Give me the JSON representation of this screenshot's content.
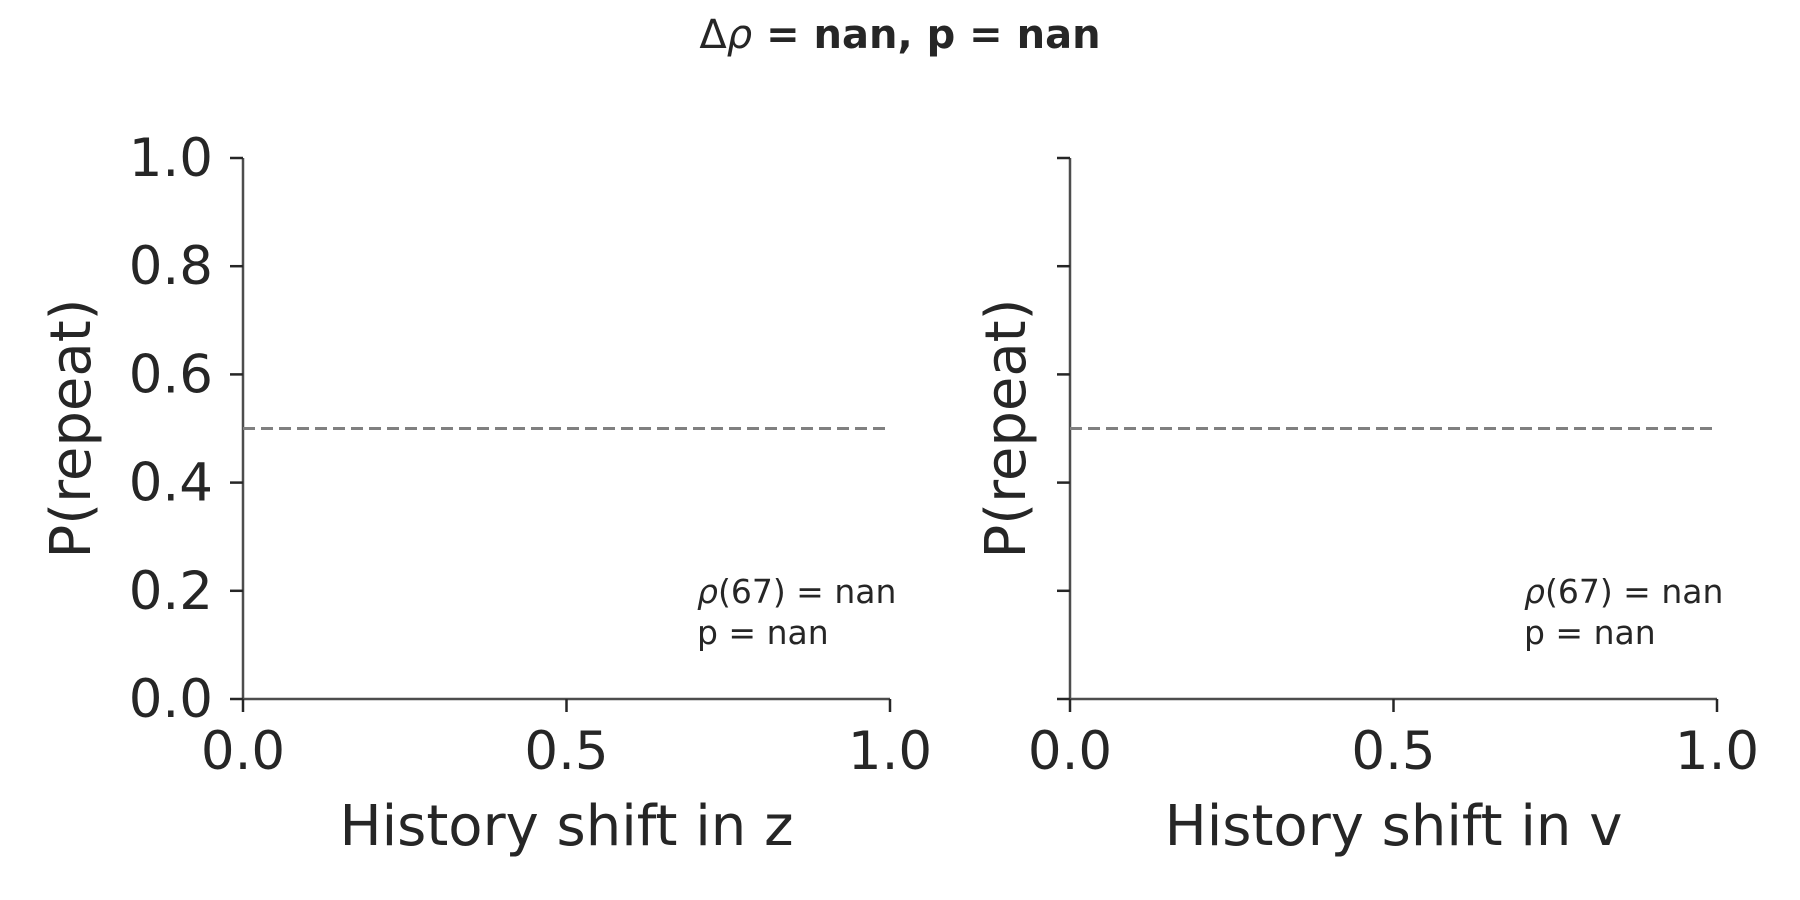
{
  "figure": {
    "title_prefix": "Δ",
    "title_rho": "ρ",
    "title_rest": " = nan, p = nan",
    "colors": {
      "axis": "#262626",
      "spine": "#4d4d4d",
      "reference_line": "#808080"
    }
  },
  "chart_data": [
    {
      "type": "line",
      "xlabel": "History shift in z",
      "ylabel": "P(repeat)",
      "xlim": [
        0,
        1
      ],
      "ylim": [
        0,
        1
      ],
      "xticks": [
        "0.0",
        "0.5",
        "1.0"
      ],
      "xtick_values": [
        0,
        0.5,
        1
      ],
      "yticks": [
        "0.0",
        "0.2",
        "0.4",
        "0.6",
        "0.8",
        "1.0"
      ],
      "ytick_values": [
        0,
        0.2,
        0.4,
        0.6,
        0.8,
        1.0
      ],
      "show_ytick_labels": true,
      "reference_line": {
        "y": 0.5,
        "style": "dashed",
        "x": [
          0,
          1
        ]
      },
      "series": [],
      "annotation": {
        "rho_symbol": "ρ",
        "line1_rest": "(67) = nan",
        "line2": "p = nan"
      },
      "grid": false
    },
    {
      "type": "line",
      "xlabel": "History shift in v",
      "ylabel": "P(repeat)",
      "xlim": [
        0,
        1
      ],
      "ylim": [
        0,
        1
      ],
      "xticks": [
        "0.0",
        "0.5",
        "1.0"
      ],
      "xtick_values": [
        0,
        0.5,
        1
      ],
      "yticks": [],
      "ytick_values": [
        0,
        0.2,
        0.4,
        0.6,
        0.8,
        1.0
      ],
      "show_ytick_labels": false,
      "reference_line": {
        "y": 0.5,
        "style": "dashed",
        "x": [
          0,
          1
        ]
      },
      "series": [],
      "annotation": {
        "rho_symbol": "ρ",
        "line1_rest": "(67) = nan",
        "line2": "p = nan"
      },
      "grid": false
    }
  ]
}
